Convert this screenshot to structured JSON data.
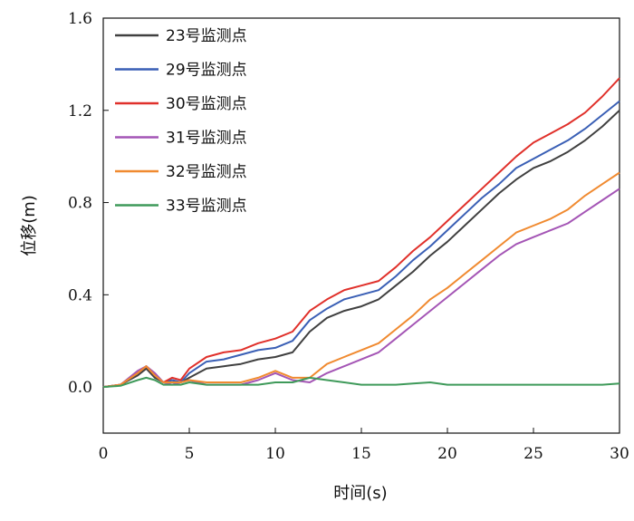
{
  "chart_data": {
    "type": "line",
    "xlabel": "时间(s)",
    "ylabel": "位移(m)",
    "xlim": [
      0,
      30
    ],
    "ylim": [
      -0.2,
      1.6
    ],
    "xticks": [
      "0",
      "5",
      "10",
      "15",
      "20",
      "25",
      "30"
    ],
    "yticks": [
      "0.0",
      "0.4",
      "0.8",
      "1.2",
      "1.6"
    ],
    "grid": false,
    "legend_position": "top-left",
    "series": [
      {
        "name": "23号监测点",
        "color": "#404040",
        "x": [
          0,
          1,
          2,
          2.5,
          3,
          3.5,
          4,
          4.5,
          5,
          6,
          7,
          8,
          9,
          10,
          11,
          12,
          13,
          14,
          15,
          16,
          17,
          18,
          19,
          20,
          21,
          22,
          23,
          24,
          25,
          26,
          27,
          28,
          29,
          30
        ],
        "y": [
          0,
          0.01,
          0.05,
          0.08,
          0.04,
          0.02,
          0.03,
          0.02,
          0.04,
          0.08,
          0.09,
          0.1,
          0.12,
          0.13,
          0.15,
          0.24,
          0.3,
          0.33,
          0.35,
          0.38,
          0.44,
          0.5,
          0.57,
          0.63,
          0.7,
          0.77,
          0.84,
          0.9,
          0.95,
          0.98,
          1.02,
          1.07,
          1.13,
          1.2
        ]
      },
      {
        "name": "29号监测点",
        "color": "#3a5fb5",
        "x": [
          0,
          1,
          2,
          2.5,
          3,
          3.5,
          4,
          4.5,
          5,
          6,
          7,
          8,
          9,
          10,
          11,
          12,
          13,
          14,
          15,
          16,
          17,
          18,
          19,
          20,
          21,
          22,
          23,
          24,
          25,
          26,
          27,
          28,
          29,
          30
        ],
        "y": [
          0,
          0.01,
          0.06,
          0.09,
          0.05,
          0.02,
          0.03,
          0.02,
          0.06,
          0.11,
          0.12,
          0.14,
          0.16,
          0.17,
          0.2,
          0.29,
          0.34,
          0.38,
          0.4,
          0.42,
          0.48,
          0.55,
          0.61,
          0.68,
          0.75,
          0.82,
          0.88,
          0.95,
          0.99,
          1.03,
          1.07,
          1.12,
          1.18,
          1.24
        ]
      },
      {
        "name": "30号监测点",
        "color": "#e0302a",
        "x": [
          0,
          1,
          2,
          2.5,
          3,
          3.5,
          4,
          4.5,
          5,
          6,
          7,
          8,
          9,
          10,
          11,
          12,
          13,
          14,
          15,
          16,
          17,
          18,
          19,
          20,
          21,
          22,
          23,
          24,
          25,
          26,
          27,
          28,
          29,
          30
        ],
        "y": [
          0,
          0.01,
          0.06,
          0.09,
          0.05,
          0.02,
          0.04,
          0.03,
          0.08,
          0.13,
          0.15,
          0.16,
          0.19,
          0.21,
          0.24,
          0.33,
          0.38,
          0.42,
          0.44,
          0.46,
          0.52,
          0.59,
          0.65,
          0.72,
          0.79,
          0.86,
          0.93,
          1.0,
          1.06,
          1.1,
          1.14,
          1.19,
          1.26,
          1.34
        ]
      },
      {
        "name": "31号监测点",
        "color": "#a455b5",
        "x": [
          0,
          1,
          2,
          2.5,
          3,
          3.5,
          4,
          4.5,
          5,
          6,
          7,
          8,
          9,
          10,
          11,
          12,
          13,
          14,
          15,
          16,
          17,
          18,
          19,
          20,
          21,
          22,
          23,
          24,
          25,
          26,
          27,
          28,
          29,
          30
        ],
        "y": [
          0,
          0.01,
          0.07,
          0.09,
          0.06,
          0.02,
          0.01,
          0.02,
          0.03,
          0.01,
          0.01,
          0.01,
          0.03,
          0.06,
          0.03,
          0.02,
          0.06,
          0.09,
          0.12,
          0.15,
          0.21,
          0.27,
          0.33,
          0.39,
          0.45,
          0.51,
          0.57,
          0.62,
          0.65,
          0.68,
          0.71,
          0.76,
          0.81,
          0.86
        ]
      },
      {
        "name": "32号监测点",
        "color": "#f08a30",
        "x": [
          0,
          1,
          2,
          2.5,
          3,
          3.5,
          4,
          4.5,
          5,
          6,
          7,
          8,
          9,
          10,
          11,
          12,
          13,
          14,
          15,
          16,
          17,
          18,
          19,
          20,
          21,
          22,
          23,
          24,
          25,
          26,
          27,
          28,
          29,
          30
        ],
        "y": [
          0,
          0.01,
          0.06,
          0.09,
          0.05,
          0.02,
          0.02,
          0.02,
          0.03,
          0.02,
          0.02,
          0.02,
          0.04,
          0.07,
          0.04,
          0.04,
          0.1,
          0.13,
          0.16,
          0.19,
          0.25,
          0.31,
          0.38,
          0.43,
          0.49,
          0.55,
          0.61,
          0.67,
          0.7,
          0.73,
          0.77,
          0.83,
          0.88,
          0.93
        ]
      },
      {
        "name": "33号监测点",
        "color": "#3f9a5a",
        "x": [
          0,
          1,
          2,
          2.5,
          3,
          3.5,
          4,
          4.5,
          5,
          6,
          7,
          8,
          9,
          10,
          11,
          12,
          13,
          14,
          15,
          16,
          17,
          18,
          19,
          20,
          21,
          22,
          23,
          24,
          25,
          26,
          27,
          28,
          29,
          30
        ],
        "y": [
          0,
          0.005,
          0.03,
          0.04,
          0.03,
          0.01,
          0.01,
          0.01,
          0.02,
          0.01,
          0.01,
          0.01,
          0.01,
          0.02,
          0.02,
          0.04,
          0.03,
          0.02,
          0.01,
          0.01,
          0.01,
          0.015,
          0.02,
          0.01,
          0.01,
          0.01,
          0.01,
          0.01,
          0.01,
          0.01,
          0.01,
          0.01,
          0.01,
          0.015
        ]
      }
    ]
  }
}
